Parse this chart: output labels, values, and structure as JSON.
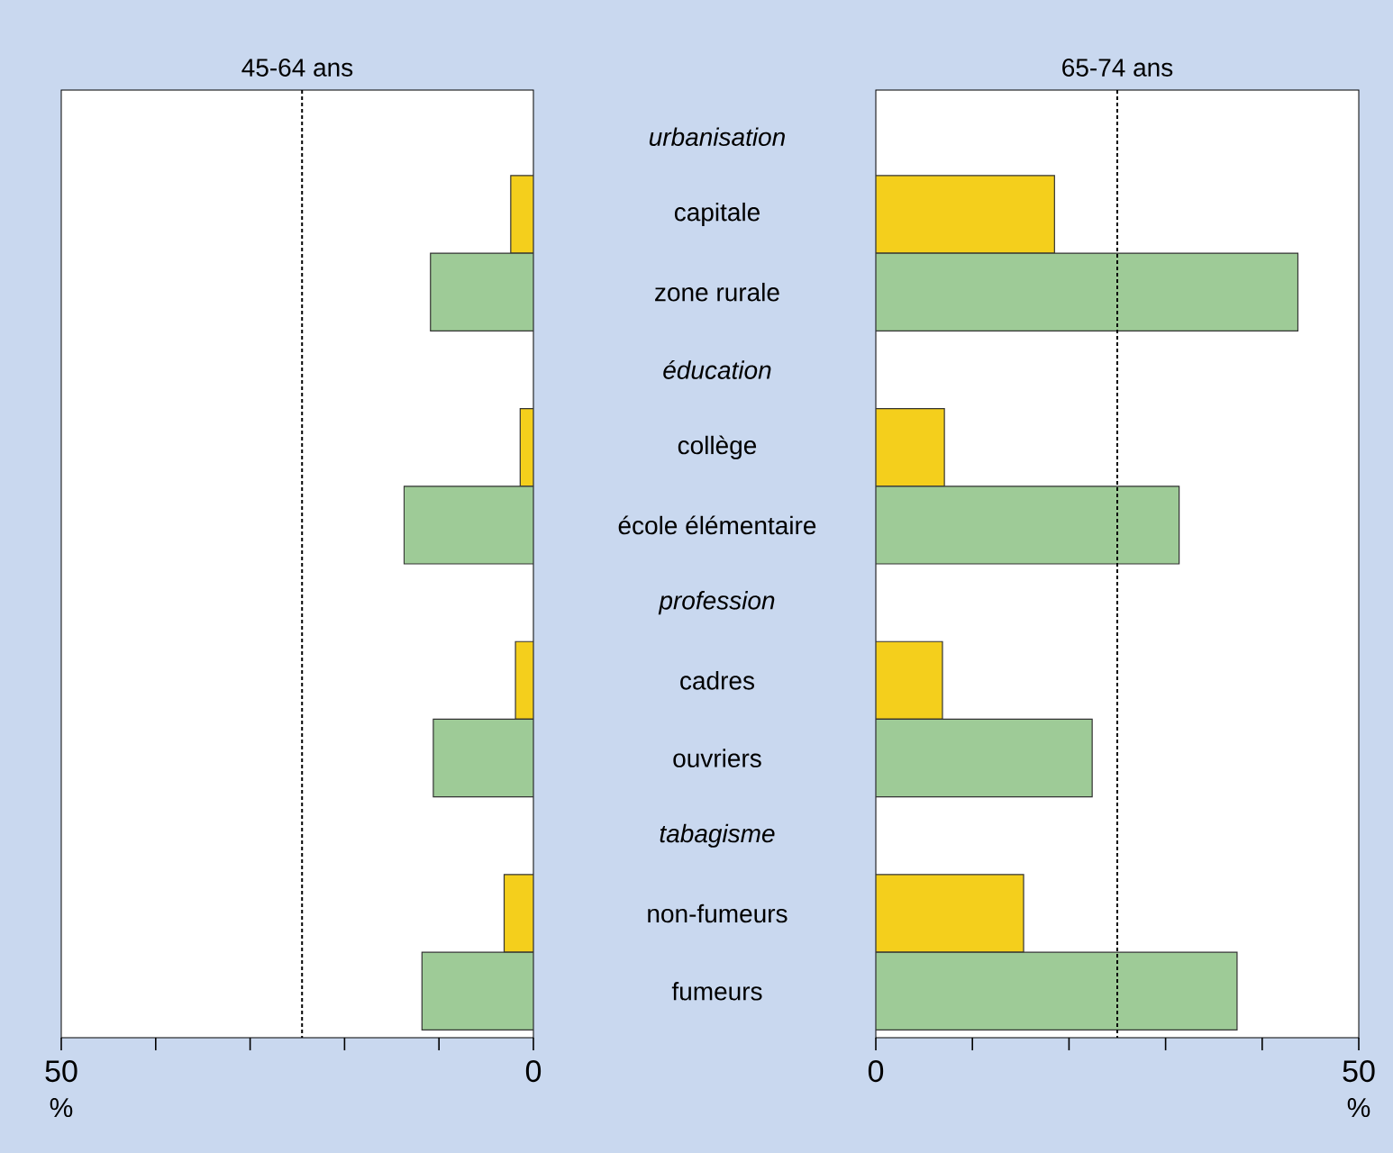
{
  "chart_data": [
    {
      "type": "bar",
      "orientation": "horizontal",
      "title": "45-64 ans",
      "xlabel": "%",
      "categories": [
        "urbanisation",
        "capitale",
        "zone rurale",
        "éducation",
        "collège",
        "école élémentaire",
        "profession",
        "cadres",
        "ouvriers",
        "tabagisme",
        "non-fumeurs",
        "fumeurs"
      ],
      "series": [
        {
          "color": "#f4cf1c",
          "values": [
            null,
            2.4,
            null,
            null,
            1.4,
            null,
            null,
            1.9,
            null,
            null,
            3.1,
            null
          ]
        },
        {
          "color": "#9ecb97",
          "values": [
            null,
            null,
            10.9,
            null,
            null,
            13.7,
            null,
            null,
            10.6,
            null,
            null,
            11.8
          ]
        }
      ],
      "xlim": [
        50,
        0
      ],
      "xticks": [
        50,
        {
          "value": 40,
          "label": null
        },
        {
          "value": 30,
          "label": null
        },
        {
          "value": 20,
          "label": null
        },
        {
          "value": 10,
          "label": null
        },
        0
      ],
      "ref_lines": [
        {
          "axis": "x",
          "value": 24.5,
          "line_style": "dotted"
        }
      ]
    },
    {
      "type": "bar",
      "orientation": "horizontal",
      "title": "65-74 ans",
      "xlabel": "%",
      "categories": [
        null,
        null,
        null,
        null,
        null,
        null,
        null,
        null,
        null,
        null,
        null,
        null
      ],
      "series": [
        {
          "color": "#f4cf1c",
          "values": [
            null,
            18.5,
            null,
            null,
            7.1,
            null,
            null,
            6.9,
            null,
            null,
            15.3,
            null
          ]
        },
        {
          "color": "#9ecb97",
          "values": [
            null,
            null,
            43.7,
            null,
            null,
            31.4,
            null,
            null,
            22.4,
            null,
            null,
            37.4
          ]
        }
      ],
      "xlim": [
        0,
        50
      ],
      "xticks": [
        0,
        {
          "value": 10,
          "label": null
        },
        {
          "value": 20,
          "label": null
        },
        {
          "value": 30,
          "label": null
        },
        {
          "value": 40,
          "label": null
        },
        50
      ],
      "tick_labels": "x",
      "ref_lines": [
        {
          "axis": "x",
          "value": 25,
          "line_style": "dotted"
        }
      ]
    }
  ]
}
